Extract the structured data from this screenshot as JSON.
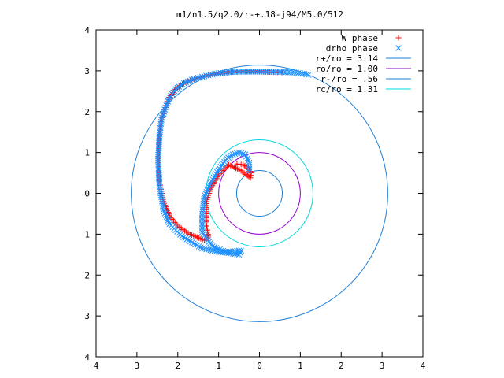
{
  "chart_data": {
    "type": "scatter",
    "title": "m1/n1.5/q2.0/r-+.18-j94/M5.0/512",
    "xlabel": "",
    "ylabel": "",
    "xlim": [
      -4,
      4
    ],
    "ylim": [
      -4,
      4
    ],
    "x_tick_values": [
      -4,
      -3,
      -2,
      -1,
      0,
      1,
      2,
      3,
      4
    ],
    "x_tick_labels": [
      "4",
      "3",
      "2",
      "1",
      "0",
      "1",
      "2",
      "3",
      "4"
    ],
    "y_tick_values": [
      4,
      3,
      2,
      1,
      0,
      -1,
      -2,
      -3,
      -4
    ],
    "y_tick_labels": [
      "4",
      "3",
      "2",
      "1",
      "0",
      "1",
      "2",
      "3",
      "4"
    ],
    "grid": false,
    "legend_position": "top-right",
    "point_series": [
      {
        "name": "W phase",
        "marker": "plus",
        "color": "#ff0000",
        "x": [
          -0.55,
          -0.4,
          -0.28,
          -0.2,
          -0.22,
          -0.45,
          -0.75,
          -1.0,
          -1.2,
          -1.3,
          -1.3,
          -1.3,
          -1.25,
          -1.35,
          -1.7,
          -2.0,
          -2.2,
          -2.35,
          -2.45,
          -2.48,
          -2.45,
          -2.4,
          -2.3,
          -2.2,
          -2.05,
          -1.85,
          -1.6,
          -1.3,
          -1.0,
          -0.7,
          -0.4,
          -0.1,
          0.2,
          0.55
        ],
        "y": [
          0.72,
          0.7,
          0.62,
          0.5,
          0.38,
          0.55,
          0.7,
          0.45,
          0.1,
          -0.2,
          -0.5,
          -0.75,
          -1.05,
          -1.15,
          -1.0,
          -0.8,
          -0.55,
          -0.2,
          0.3,
          0.9,
          1.4,
          1.8,
          2.1,
          2.35,
          2.55,
          2.7,
          2.8,
          2.88,
          2.94,
          2.97,
          2.98,
          2.98,
          2.97,
          2.96
        ]
      },
      {
        "name": "drho phase",
        "marker": "cross",
        "color": "#1e90ff",
        "x": [
          -0.25,
          -0.25,
          -0.35,
          -0.5,
          -0.65,
          -0.8,
          -0.95,
          -1.2,
          -1.35,
          -1.4,
          -1.4,
          -1.15,
          -0.8,
          -0.5,
          -0.45,
          -0.9,
          -1.4,
          -1.9,
          -2.2,
          -2.35,
          -2.45,
          -2.48,
          -2.45,
          -2.4,
          -2.3,
          -2.2,
          -2.05,
          -1.85,
          -1.6,
          -1.3,
          -1.0,
          -0.7,
          -0.4,
          -0.1,
          0.2,
          0.55,
          0.85,
          1.05,
          1.2
        ],
        "y": [
          0.55,
          0.75,
          0.95,
          1.0,
          0.95,
          0.85,
          0.65,
          0.25,
          -0.1,
          -0.5,
          -0.95,
          -1.3,
          -1.45,
          -1.5,
          -1.4,
          -1.45,
          -1.35,
          -1.05,
          -0.75,
          -0.4,
          0.2,
          0.8,
          1.4,
          1.8,
          2.1,
          2.35,
          2.55,
          2.7,
          2.8,
          2.88,
          2.94,
          2.97,
          2.98,
          2.98,
          2.98,
          2.97,
          2.96,
          2.93,
          2.9
        ]
      }
    ],
    "circle_series": [
      {
        "name": "r+/ro = 3.14",
        "radius": 3.14,
        "color": "#1e7fd6"
      },
      {
        "name": "ro/ro = 1.00",
        "radius": 1.0,
        "color": "#9400d3"
      },
      {
        "name": "r-/ro = .56",
        "radius": 0.56,
        "color": "#1e7fd6"
      },
      {
        "name": "rc/ro = 1.31",
        "radius": 1.31,
        "color": "#00d8d8"
      }
    ],
    "frame_color": "#000000"
  }
}
